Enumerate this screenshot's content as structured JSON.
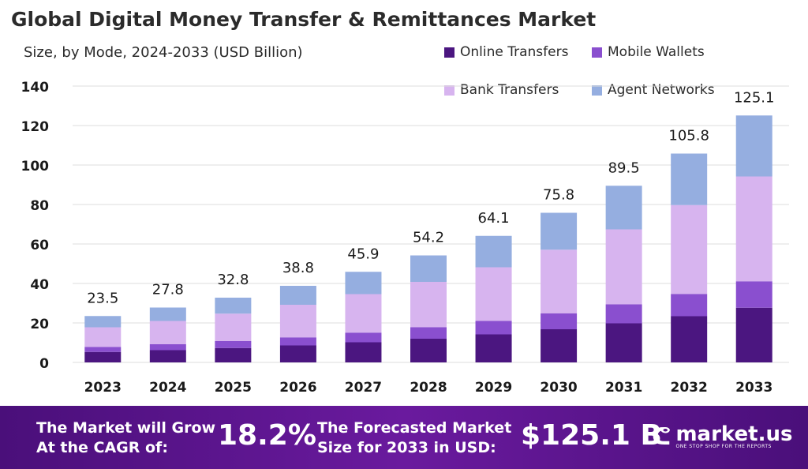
{
  "title": "Global Digital Money Transfer & Remittances Market",
  "subtitle": "Size, by Mode, 2024-2033 (USD Billion)",
  "footer": {
    "cagr_label_1": "The Market will Grow",
    "cagr_label_2": "At the CAGR of:",
    "cagr_value": "18.2%",
    "size_label_1": "The Forecasted Market",
    "size_label_2": "Size for 2033 in USD:",
    "size_value": "$125.1 B",
    "logo_name": "market.us",
    "logo_tagline": "ONE STOP SHOP FOR THE REPORTS"
  },
  "colors": {
    "online_transfers": "#4b1680",
    "mobile_wallets": "#8a4fcf",
    "bank_transfers": "#d7b4ef",
    "agent_networks": "#95aee0",
    "grid": "#dcdcdc"
  },
  "chart_data": {
    "type": "bar",
    "stacked": true,
    "title": "Global Digital Money Transfer & Remittances Market",
    "subtitle": "Size, by Mode, 2024-2033 (USD Billion)",
    "categories": [
      "2023",
      "2024",
      "2025",
      "2026",
      "2027",
      "2028",
      "2029",
      "2030",
      "2031",
      "2032",
      "2033"
    ],
    "series": [
      {
        "name": "Online Transfers",
        "values": [
          5.3,
          6.2,
          7.3,
          8.6,
          10.2,
          12.0,
          14.2,
          16.8,
          19.8,
          23.4,
          27.7
        ]
      },
      {
        "name": "Mobile Wallets",
        "values": [
          2.5,
          3.0,
          3.5,
          4.1,
          4.9,
          5.8,
          6.8,
          8.1,
          9.6,
          11.3,
          13.4
        ]
      },
      {
        "name": "Bank Transfers",
        "values": [
          10.0,
          11.8,
          13.9,
          16.5,
          19.5,
          23.0,
          27.2,
          32.2,
          38.0,
          45.0,
          53.1
        ]
      },
      {
        "name": "Agent Networks",
        "values": [
          5.7,
          6.8,
          8.1,
          9.6,
          11.3,
          13.4,
          15.9,
          18.7,
          22.1,
          26.1,
          30.9
        ]
      }
    ],
    "totals": [
      23.5,
      27.8,
      32.8,
      38.8,
      45.9,
      54.2,
      64.1,
      75.8,
      89.5,
      105.8,
      125.1
    ],
    "total_labels": [
      "23.5",
      "27.8",
      "32.8",
      "38.8",
      "45.9",
      "54.2",
      "64.1",
      "75.8",
      "89.5",
      "105.8",
      "125.1"
    ],
    "yticks": [
      "0",
      "20",
      "40",
      "60",
      "80",
      "100",
      "120",
      "140"
    ],
    "ylim": [
      0,
      140
    ],
    "xlabel": "",
    "ylabel": "",
    "grid": true,
    "legend": "top-right"
  }
}
